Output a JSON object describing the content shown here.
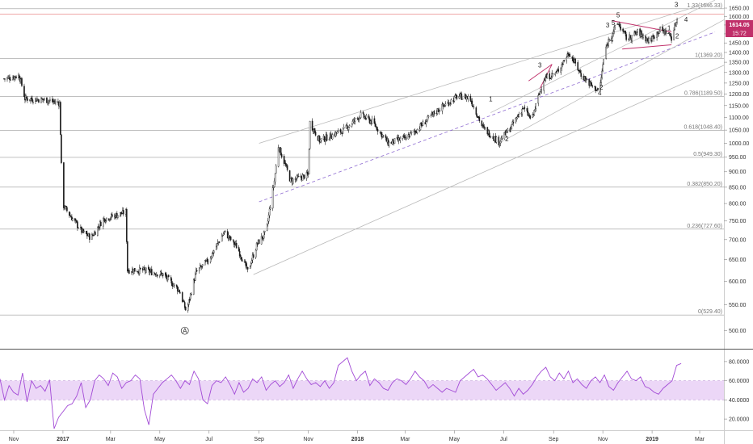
{
  "colors": {
    "candle_up": "#1a1a1a",
    "candle_down": "#1a1a1a",
    "rsi_line": "#a24ad6",
    "rsi_band": "#ecd7f7",
    "channel_line": "#b8b8b8",
    "mid_line": "#8e6bd1",
    "triangle": "#c0306a",
    "resistance": "#e88a8a",
    "price_badge": "#c0306a",
    "fib_line": "#9a9a9a"
  },
  "price_badge": {
    "price": "1614.05",
    "time": "15:72"
  },
  "elliott_labels": [
    {
      "text": "A",
      "circled": true,
      "date": "2017-06-01",
      "price": 495
    },
    {
      "text": "1",
      "date": "2018-06-15",
      "price": 1168
    },
    {
      "text": "2",
      "date": "2018-07-05",
      "price": 1008
    },
    {
      "text": "3",
      "date": "2018-08-15",
      "price": 1325
    },
    {
      "text": "4",
      "date": "2018-10-28",
      "price": 1195
    },
    {
      "text": "3",
      "date": "2018-11-07",
      "price": 1535
    },
    {
      "text": "4",
      "date": "2018-11-12",
      "price": 1455
    },
    {
      "text": "5",
      "date": "2018-11-14",
      "price": 1550
    },
    {
      "text": "5",
      "date": "2018-11-20",
      "price": 1595
    },
    {
      "text": "2",
      "date": "2018-10-30",
      "price": 1220
    },
    {
      "text": "1",
      "date": "2019-01-22",
      "price": 1520
    },
    {
      "text": "2",
      "date": "2019-02-01",
      "price": 1475
    },
    {
      "text": "3",
      "date": "2019-01-31",
      "price": 1658
    },
    {
      "text": "4",
      "date": "2019-02-12",
      "price": 1568
    }
  ],
  "chart_data": [
    {
      "type": "candlestick",
      "title": "",
      "xlabel": "",
      "ylabel": "",
      "x_range": [
        "2016-10-15",
        "2019-03-31"
      ],
      "ylim": [
        470,
        1680
      ],
      "y_ticks": [
        500,
        550,
        600,
        650,
        700,
        750,
        800,
        850,
        900,
        950,
        1000,
        1050,
        1100,
        1150,
        1200,
        1250,
        1300,
        1350,
        1400,
        1450,
        1500,
        1550,
        1600,
        1650
      ],
      "y_tick_labels": [
        "500.00",
        "550.00",
        "600.00",
        "650.00",
        "700.00",
        "750.00",
        "800.00",
        "850.00",
        "900.00",
        "950.00",
        "1000.00",
        "1050.00",
        "1100.00",
        "1150.00",
        "1200.00",
        "1250.00",
        "1300.00",
        "1350.00",
        "1400.00",
        "1450.00",
        "1500.00",
        "1550.00",
        "1600.00",
        "1650.00"
      ],
      "x_ticks": [
        {
          "label": "Nov",
          "date": "2016-11-01"
        },
        {
          "label": "2017",
          "date": "2017-01-01"
        },
        {
          "label": "Mar",
          "date": "2017-03-01"
        },
        {
          "label": "May",
          "date": "2017-05-01"
        },
        {
          "label": "Jul",
          "date": "2017-07-01"
        },
        {
          "label": "Sep",
          "date": "2017-09-01"
        },
        {
          "label": "Nov",
          "date": "2017-11-01"
        },
        {
          "label": "2018",
          "date": "2018-01-01"
        },
        {
          "label": "Mar",
          "date": "2018-03-01"
        },
        {
          "label": "May",
          "date": "2018-05-01"
        },
        {
          "label": "Jul",
          "date": "2018-07-01"
        },
        {
          "label": "Sep",
          "date": "2018-09-01"
        },
        {
          "label": "Nov",
          "date": "2018-11-01"
        },
        {
          "label": "2019",
          "date": "2019-01-01"
        },
        {
          "label": "Mar",
          "date": "2019-03-01"
        }
      ],
      "price_path_anchors": [
        [
          "2016-10-20",
          1270
        ],
        [
          "2016-11-08",
          1285
        ],
        [
          "2016-11-15",
          1180
        ],
        [
          "2016-12-10",
          1175
        ],
        [
          "2016-12-28",
          1160
        ],
        [
          "2016-12-31",
          800
        ],
        [
          "2017-01-10",
          765
        ],
        [
          "2017-01-25",
          720
        ],
        [
          "2017-02-05",
          705
        ],
        [
          "2017-02-20",
          755
        ],
        [
          "2017-03-20",
          775
        ],
        [
          "2017-03-22",
          625
        ],
        [
          "2017-04-10",
          625
        ],
        [
          "2017-05-05",
          615
        ],
        [
          "2017-05-25",
          580
        ],
        [
          "2017-06-03",
          535
        ],
        [
          "2017-06-15",
          620
        ],
        [
          "2017-07-01",
          650
        ],
        [
          "2017-07-20",
          720
        ],
        [
          "2017-08-05",
          680
        ],
        [
          "2017-08-18",
          622
        ],
        [
          "2017-08-30",
          690
        ],
        [
          "2017-09-10",
          720
        ],
        [
          "2017-09-20",
          870
        ],
        [
          "2017-09-25",
          990
        ],
        [
          "2017-10-10",
          870
        ],
        [
          "2017-11-01",
          890
        ],
        [
          "2017-11-03",
          1080
        ],
        [
          "2017-11-15",
          1010
        ],
        [
          "2017-12-15",
          1050
        ],
        [
          "2018-01-05",
          1110
        ],
        [
          "2018-01-20",
          1080
        ],
        [
          "2018-02-08",
          1000
        ],
        [
          "2018-03-01",
          1020
        ],
        [
          "2018-03-15",
          1050
        ],
        [
          "2018-04-10",
          1130
        ],
        [
          "2018-05-05",
          1190
        ],
        [
          "2018-05-20",
          1185
        ],
        [
          "2018-06-05",
          1060
        ],
        [
          "2018-06-25",
          1005
        ],
        [
          "2018-07-10",
          1060
        ],
        [
          "2018-07-25",
          1140
        ],
        [
          "2018-08-05",
          1090
        ],
        [
          "2018-08-20",
          1270
        ],
        [
          "2018-09-05",
          1300
        ],
        [
          "2018-09-20",
          1400
        ],
        [
          "2018-10-05",
          1290
        ],
        [
          "2018-10-20",
          1230
        ],
        [
          "2018-10-28",
          1215
        ],
        [
          "2018-11-03",
          1395
        ],
        [
          "2018-11-10",
          1490
        ],
        [
          "2018-11-20",
          1560
        ],
        [
          "2018-12-01",
          1470
        ],
        [
          "2018-12-15",
          1510
        ],
        [
          "2018-12-28",
          1460
        ],
        [
          "2019-01-10",
          1520
        ],
        [
          "2019-01-20",
          1510
        ],
        [
          "2019-01-25",
          1480
        ],
        [
          "2019-02-03",
          1614
        ]
      ],
      "fib_levels": [
        {
          "ratio": "1.33",
          "price": 1646.33,
          "label": "1.33(1646.33)"
        },
        {
          "ratio": "1",
          "price": 1369.2,
          "label": "1(1369.20)"
        },
        {
          "ratio": "0.786",
          "price": 1189.5,
          "label": "0.786(1189.50)"
        },
        {
          "ratio": "0.618",
          "price": 1048.4,
          "label": "0.618(1048.40)"
        },
        {
          "ratio": "0.5",
          "price": 949.3,
          "label": "0.5(949.30)"
        },
        {
          "ratio": "0.382",
          "price": 850.2,
          "label": "0.382(850.20)"
        },
        {
          "ratio": "0.236",
          "price": 727.6,
          "label": "0.236(727.60)"
        },
        {
          "ratio": "0",
          "price": 529.4,
          "label": "0(529.40)"
        }
      ],
      "last_price": 1614.05,
      "resistance_price": 1614.05,
      "channel": {
        "upper": [
          [
            "2017-09-01",
            1000
          ],
          [
            "2019-03-10",
            1680
          ]
        ],
        "lower": [
          [
            "2017-08-25",
            615
          ],
          [
            "2019-03-31",
            1335
          ]
        ],
        "middle": [
          [
            "2017-09-01",
            805
          ],
          [
            "2019-03-20",
            1510
          ]
        ]
      },
      "inner_channel": {
        "upper": [
          [
            "2018-06-15",
            1120
          ],
          [
            "2019-03-20",
            1700
          ]
        ],
        "lower": [
          [
            "2018-06-25",
            1000
          ],
          [
            "2019-03-31",
            1580
          ]
        ]
      },
      "triangle": {
        "upper": [
          [
            "2018-11-12",
            1575
          ],
          [
            "2019-01-25",
            1510
          ]
        ],
        "lower": [
          [
            "2018-11-25",
            1418
          ],
          [
            "2019-01-25",
            1440
          ]
        ]
      },
      "small_flag": [
        [
          "2018-08-01",
          1260
        ],
        [
          "2018-08-30",
          1340
        ],
        [
          "2018-08-15",
          1225
        ]
      ]
    },
    {
      "type": "line",
      "title": "",
      "series": [
        {
          "values": [
            62,
            40,
            55,
            48,
            45,
            68,
            38,
            60,
            52,
            55,
            49,
            61,
            10,
            22,
            28,
            34,
            36,
            44,
            58,
            32,
            40,
            60,
            66,
            62,
            55,
            68,
            64,
            52,
            58,
            60,
            66,
            62,
            30,
            14,
            46,
            52,
            58,
            62,
            66,
            60,
            52,
            60,
            56,
            70,
            62,
            40,
            36,
            55,
            60,
            58,
            64,
            56,
            46,
            58,
            48,
            52,
            62,
            58,
            64,
            50,
            56,
            60,
            54,
            58,
            66,
            52,
            62,
            70,
            62,
            56,
            58,
            54,
            60,
            52,
            58,
            76,
            80,
            84,
            70,
            60,
            66,
            70,
            55,
            62,
            58,
            52,
            50,
            58,
            62,
            60,
            56,
            62,
            70,
            64,
            60,
            52,
            56,
            52,
            48,
            52,
            50,
            48,
            60,
            64,
            68,
            72,
            64,
            66,
            62,
            56,
            50,
            54,
            58,
            52,
            44,
            52,
            46,
            50,
            56,
            64,
            70,
            74,
            64,
            60,
            68,
            62,
            70,
            58,
            62,
            56,
            52,
            60,
            64,
            58,
            66,
            54,
            50,
            58,
            64,
            70,
            62,
            60,
            64,
            54,
            52,
            48,
            46,
            52,
            56,
            60,
            76,
            78
          ]
        }
      ],
      "x_range": [
        "2016-10-15",
        "2019-02-06"
      ],
      "ylim": [
        10,
        90
      ],
      "y_ticks": [
        20,
        40,
        60,
        80
      ],
      "y_tick_labels": [
        "20.0000",
        "40.0000",
        "60.0000",
        "80.0000"
      ],
      "overbought": 60,
      "oversold": 40
    }
  ]
}
